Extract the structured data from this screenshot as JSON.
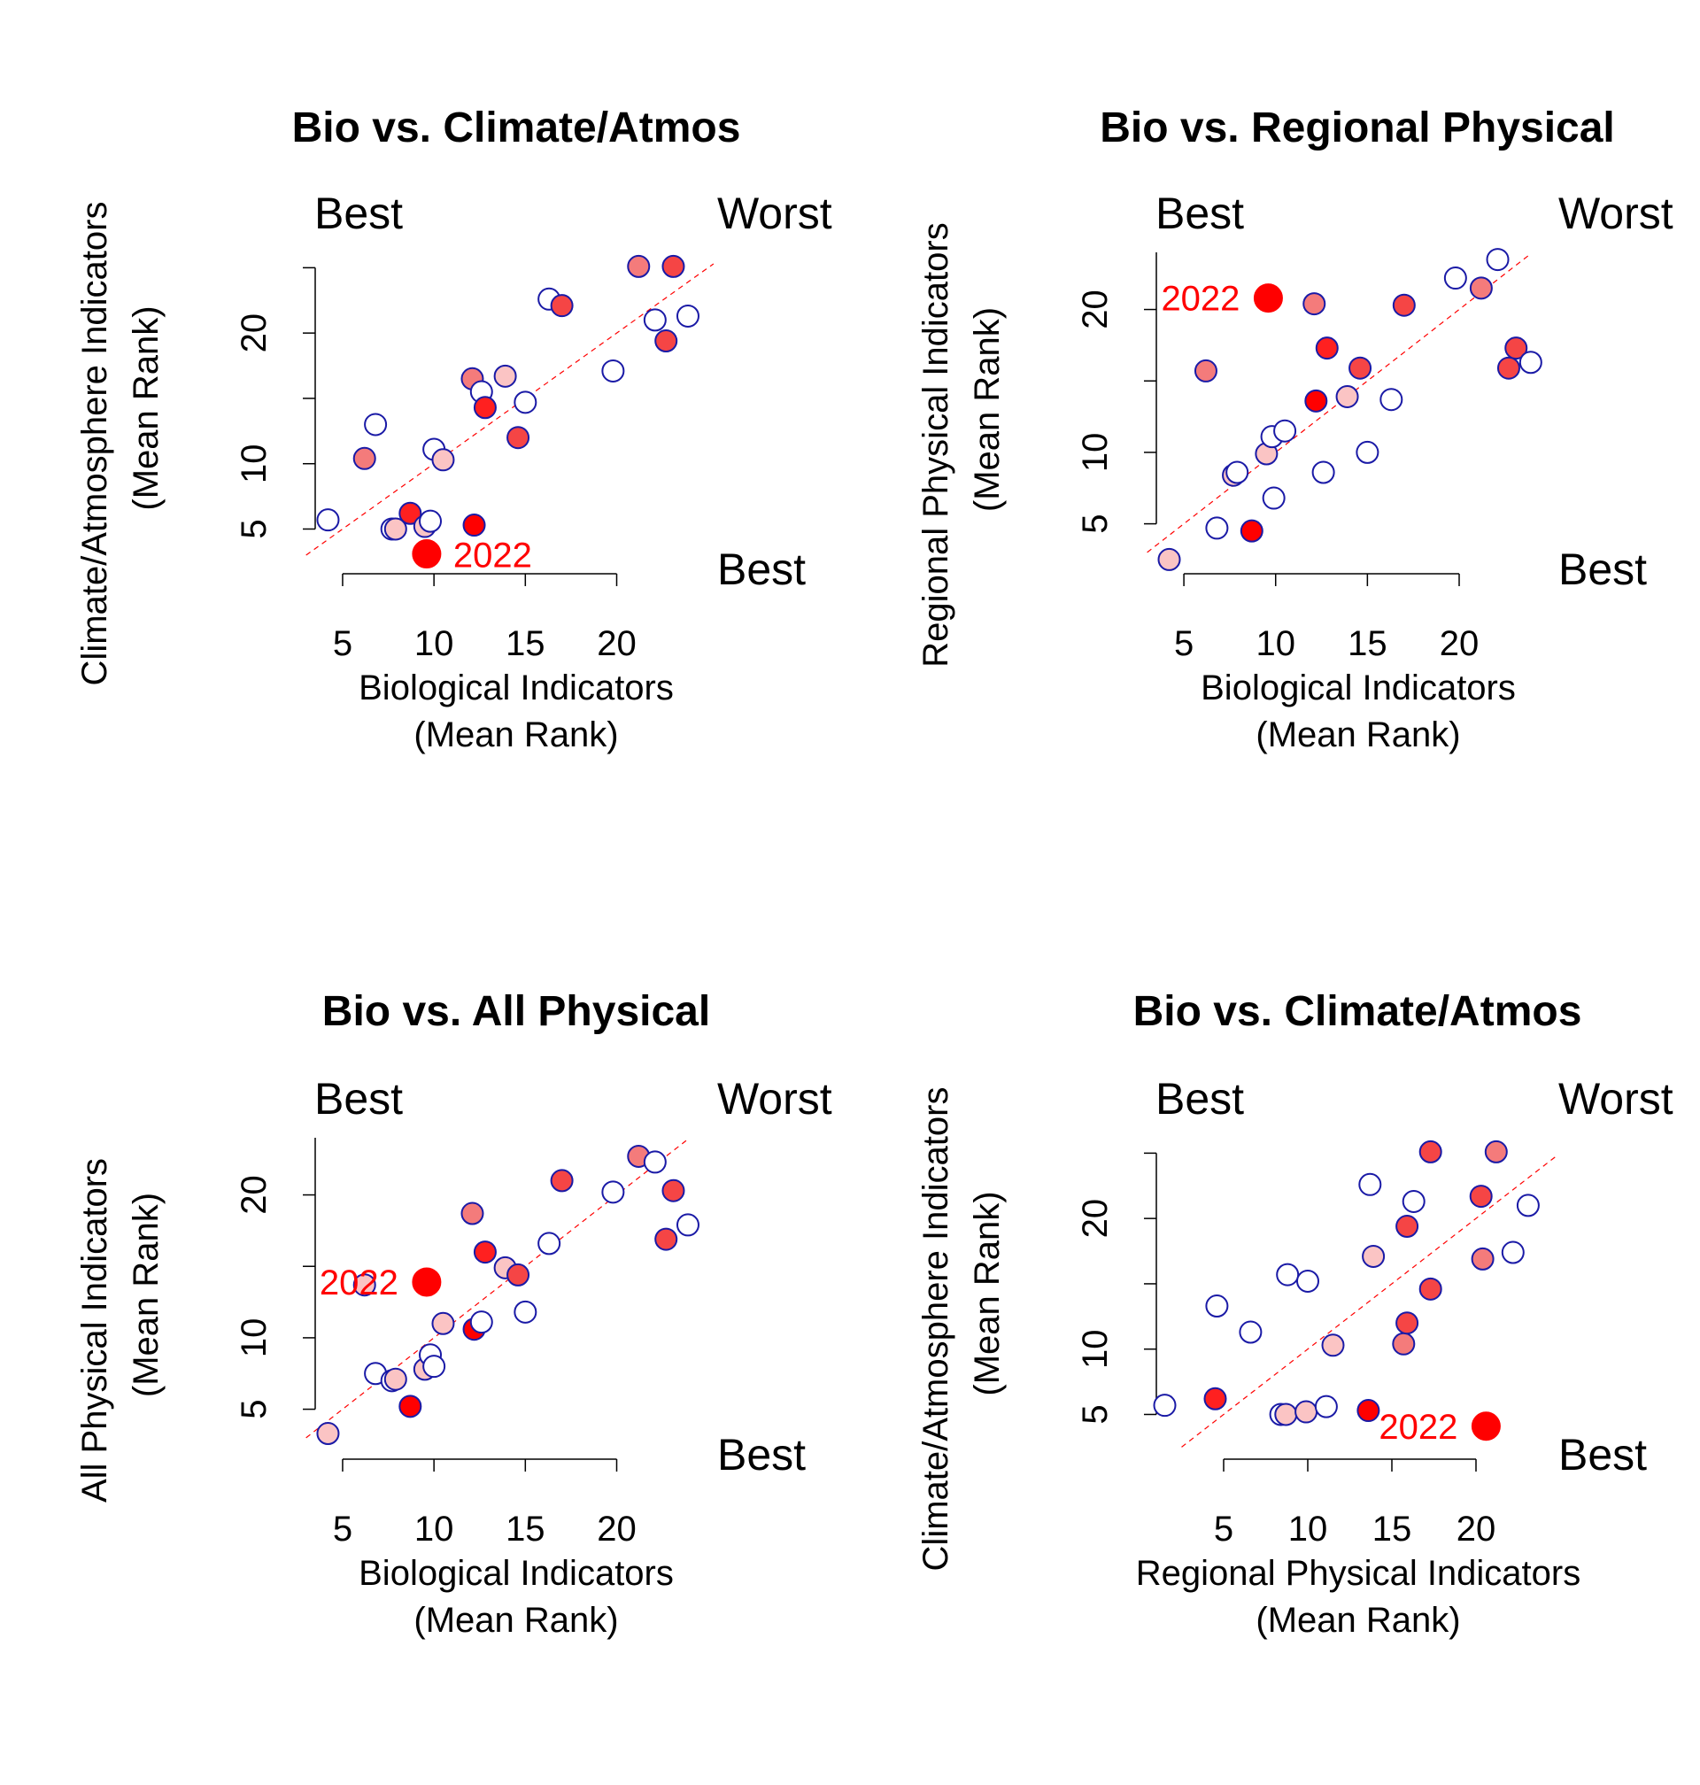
{
  "chart_data": [
    {
      "type": "scatter",
      "title": "Bio vs. Climate/Atmos",
      "xlabel": "Biological Indicators",
      "xlabel2": "(Mean Rank)",
      "ylabel": "Climate/Atmosphere Indicators",
      "ylabel2": "(Mean Rank)",
      "xticks": [
        5,
        10,
        15,
        20
      ],
      "yticks": [
        5,
        10,
        20
      ],
      "xlim": [
        3.5,
        25.5
      ],
      "ylim": [
        3,
        25.5
      ],
      "corner_labels": {
        "top_left": "Best",
        "top_right": "Worst",
        "bottom_right": "Best"
      },
      "highlight": {
        "label": "2022",
        "x": 9.6,
        "y": 3.1
      },
      "points": [
        {
          "x": 4.2,
          "y": 5.7,
          "fill": "#ffffff"
        },
        {
          "x": 6.2,
          "y": 10.4,
          "fill": "#f47b7b"
        },
        {
          "x": 6.8,
          "y": 13.0,
          "fill": "#ffffff"
        },
        {
          "x": 7.7,
          "y": 5.0,
          "fill": "#ffffff"
        },
        {
          "x": 7.9,
          "y": 5.0,
          "fill": "#fbc4c4"
        },
        {
          "x": 8.7,
          "y": 6.2,
          "fill": "#ff2020"
        },
        {
          "x": 9.5,
          "y": 5.2,
          "fill": "#fbc4c4"
        },
        {
          "x": 9.8,
          "y": 5.6,
          "fill": "#ffffff"
        },
        {
          "x": 10.0,
          "y": 11.1,
          "fill": "#ffffff"
        },
        {
          "x": 10.5,
          "y": 10.3,
          "fill": "#fbc4c4"
        },
        {
          "x": 12.2,
          "y": 5.3,
          "fill": "#ff0000"
        },
        {
          "x": 12.1,
          "y": 16.5,
          "fill": "#f47b7b"
        },
        {
          "x": 12.6,
          "y": 15.5,
          "fill": "#ffffff"
        },
        {
          "x": 12.8,
          "y": 14.3,
          "fill": "#ff2020"
        },
        {
          "x": 13.9,
          "y": 16.7,
          "fill": "#fbc4c4"
        },
        {
          "x": 14.6,
          "y": 12.0,
          "fill": "#f54545"
        },
        {
          "x": 15.0,
          "y": 14.7,
          "fill": "#ffffff"
        },
        {
          "x": 16.3,
          "y": 22.6,
          "fill": "#ffffff"
        },
        {
          "x": 17.0,
          "y": 22.1,
          "fill": "#f54545"
        },
        {
          "x": 19.8,
          "y": 17.1,
          "fill": "#ffffff"
        },
        {
          "x": 21.2,
          "y": 25.1,
          "fill": "#f47b7b"
        },
        {
          "x": 22.1,
          "y": 21.0,
          "fill": "#ffffff"
        },
        {
          "x": 22.7,
          "y": 19.4,
          "fill": "#f54545"
        },
        {
          "x": 23.1,
          "y": 25.1,
          "fill": "#f54545"
        },
        {
          "x": 23.9,
          "y": 21.3,
          "fill": "#ffffff"
        }
      ]
    },
    {
      "type": "scatter",
      "title": "Bio vs. Regional Physical",
      "xlabel": "Biological Indicators",
      "xlabel2": "(Mean Rank)",
      "ylabel": "Regional Physical Indicators",
      "ylabel2": "(Mean Rank)",
      "xticks": [
        5,
        10,
        15,
        20
      ],
      "yticks": [
        5,
        10,
        20
      ],
      "xlim": [
        3.5,
        25.5
      ],
      "ylim": [
        2,
        24
      ],
      "corner_labels": {
        "top_left": "Best",
        "top_right": "Worst",
        "bottom_right": "Best"
      },
      "highlight": {
        "label": "2022",
        "x": 9.6,
        "y": 20.8
      },
      "points": [
        {
          "x": 4.2,
          "y": 2.5,
          "fill": "#fbc4c4"
        },
        {
          "x": 6.2,
          "y": 15.7,
          "fill": "#f47b7b"
        },
        {
          "x": 6.8,
          "y": 4.7,
          "fill": "#ffffff"
        },
        {
          "x": 7.7,
          "y": 8.4,
          "fill": "#fbc4c4"
        },
        {
          "x": 7.9,
          "y": 8.6,
          "fill": "#ffffff"
        },
        {
          "x": 8.7,
          "y": 4.5,
          "fill": "#ff0000"
        },
        {
          "x": 9.5,
          "y": 9.9,
          "fill": "#fbc4c4"
        },
        {
          "x": 9.8,
          "y": 11.1,
          "fill": "#ffffff"
        },
        {
          "x": 9.9,
          "y": 6.8,
          "fill": "#ffffff"
        },
        {
          "x": 10.5,
          "y": 11.5,
          "fill": "#ffffff"
        },
        {
          "x": 12.1,
          "y": 20.4,
          "fill": "#f47b7b"
        },
        {
          "x": 12.2,
          "y": 13.6,
          "fill": "#ff0000"
        },
        {
          "x": 12.6,
          "y": 8.6,
          "fill": "#ffffff"
        },
        {
          "x": 12.8,
          "y": 17.3,
          "fill": "#ff2020"
        },
        {
          "x": 13.9,
          "y": 13.9,
          "fill": "#fbc4c4"
        },
        {
          "x": 14.6,
          "y": 15.9,
          "fill": "#f54545"
        },
        {
          "x": 15.0,
          "y": 10.0,
          "fill": "#ffffff"
        },
        {
          "x": 16.3,
          "y": 13.7,
          "fill": "#ffffff"
        },
        {
          "x": 17.0,
          "y": 20.3,
          "fill": "#f54545"
        },
        {
          "x": 19.8,
          "y": 22.2,
          "fill": "#ffffff"
        },
        {
          "x": 21.2,
          "y": 21.5,
          "fill": "#f47b7b"
        },
        {
          "x": 22.1,
          "y": 23.5,
          "fill": "#ffffff"
        },
        {
          "x": 22.7,
          "y": 15.9,
          "fill": "#f54545"
        },
        {
          "x": 23.1,
          "y": 17.3,
          "fill": "#f54545"
        },
        {
          "x": 23.9,
          "y": 16.3,
          "fill": "#ffffff"
        }
      ]
    },
    {
      "type": "scatter",
      "title": "Bio vs. All Physical",
      "xlabel": "Biological Indicators",
      "xlabel2": "(Mean Rank)",
      "ylabel": "All Physical Indicators",
      "ylabel2": "(Mean Rank)",
      "xticks": [
        5,
        10,
        15,
        20
      ],
      "yticks": [
        5,
        10,
        20
      ],
      "xlim": [
        3.5,
        25.5
      ],
      "ylim": [
        2,
        24
      ],
      "corner_labels": {
        "top_left": "Best",
        "top_right": "Worst",
        "bottom_right": "Best"
      },
      "highlight": {
        "label": "2022",
        "x": 9.6,
        "y": 13.9
      },
      "points": [
        {
          "x": 4.2,
          "y": 3.3,
          "fill": "#fbc4c4"
        },
        {
          "x": 6.2,
          "y": 13.7,
          "fill": "#fbc4c4"
        },
        {
          "x": 6.8,
          "y": 7.5,
          "fill": "#ffffff"
        },
        {
          "x": 7.7,
          "y": 7.0,
          "fill": "#ffffff"
        },
        {
          "x": 7.9,
          "y": 7.1,
          "fill": "#fbc4c4"
        },
        {
          "x": 8.7,
          "y": 5.2,
          "fill": "#ff0000"
        },
        {
          "x": 9.5,
          "y": 7.8,
          "fill": "#fbc4c4"
        },
        {
          "x": 9.8,
          "y": 8.8,
          "fill": "#ffffff"
        },
        {
          "x": 10.0,
          "y": 8.0,
          "fill": "#ffffff"
        },
        {
          "x": 10.5,
          "y": 11.0,
          "fill": "#fbc4c4"
        },
        {
          "x": 12.1,
          "y": 18.7,
          "fill": "#f47b7b"
        },
        {
          "x": 12.2,
          "y": 10.6,
          "fill": "#ff0000"
        },
        {
          "x": 12.6,
          "y": 11.1,
          "fill": "#ffffff"
        },
        {
          "x": 12.8,
          "y": 16.0,
          "fill": "#ff2020"
        },
        {
          "x": 13.9,
          "y": 14.9,
          "fill": "#fbc4c4"
        },
        {
          "x": 14.6,
          "y": 14.4,
          "fill": "#f54545"
        },
        {
          "x": 15.0,
          "y": 11.8,
          "fill": "#ffffff"
        },
        {
          "x": 16.3,
          "y": 16.6,
          "fill": "#ffffff"
        },
        {
          "x": 17.0,
          "y": 21.0,
          "fill": "#f54545"
        },
        {
          "x": 19.8,
          "y": 20.2,
          "fill": "#ffffff"
        },
        {
          "x": 21.2,
          "y": 22.7,
          "fill": "#f47b7b"
        },
        {
          "x": 22.1,
          "y": 22.3,
          "fill": "#ffffff"
        },
        {
          "x": 22.7,
          "y": 16.9,
          "fill": "#f54545"
        },
        {
          "x": 23.1,
          "y": 20.3,
          "fill": "#f54545"
        },
        {
          "x": 23.9,
          "y": 17.9,
          "fill": "#ffffff"
        }
      ]
    },
    {
      "type": "scatter",
      "title": "Bio vs. Climate/Atmos",
      "xlabel": "Regional Physical Indicators",
      "xlabel2": "(Mean Rank)",
      "ylabel": "Climate/Atmosphere Indicators",
      "ylabel2": "(Mean Rank)",
      "xticks": [
        5,
        10,
        15,
        20
      ],
      "yticks": [
        5,
        10,
        20
      ],
      "xlim": [
        1,
        25
      ],
      "ylim": [
        3,
        25.5
      ],
      "corner_labels": {
        "top_left": "Best",
        "top_right": "Worst",
        "bottom_right": "Best"
      },
      "highlight": {
        "label": "2022",
        "x": 20.6,
        "y": 4.1
      },
      "points": [
        {
          "x": 1.5,
          "y": 5.7,
          "fill": "#ffffff"
        },
        {
          "x": 4.5,
          "y": 6.2,
          "fill": "#ff2020"
        },
        {
          "x": 4.6,
          "y": 13.3,
          "fill": "#ffffff"
        },
        {
          "x": 6.6,
          "y": 11.3,
          "fill": "#ffffff"
        },
        {
          "x": 8.4,
          "y": 5.0,
          "fill": "#ffffff"
        },
        {
          "x": 8.7,
          "y": 5.0,
          "fill": "#fbc4c4"
        },
        {
          "x": 8.8,
          "y": 15.7,
          "fill": "#ffffff"
        },
        {
          "x": 9.9,
          "y": 5.2,
          "fill": "#fbc4c4"
        },
        {
          "x": 10.0,
          "y": 15.2,
          "fill": "#ffffff"
        },
        {
          "x": 11.1,
          "y": 5.6,
          "fill": "#ffffff"
        },
        {
          "x": 11.5,
          "y": 10.3,
          "fill": "#fbc4c4"
        },
        {
          "x": 13.6,
          "y": 5.3,
          "fill": "#ff0000"
        },
        {
          "x": 13.7,
          "y": 22.6,
          "fill": "#ffffff"
        },
        {
          "x": 13.9,
          "y": 17.1,
          "fill": "#fbc4c4"
        },
        {
          "x": 15.7,
          "y": 10.4,
          "fill": "#f47b7b"
        },
        {
          "x": 15.9,
          "y": 12.0,
          "fill": "#f54545"
        },
        {
          "x": 15.9,
          "y": 19.4,
          "fill": "#f54545"
        },
        {
          "x": 16.3,
          "y": 21.3,
          "fill": "#ffffff"
        },
        {
          "x": 17.3,
          "y": 14.6,
          "fill": "#f54545"
        },
        {
          "x": 17.3,
          "y": 25.1,
          "fill": "#f54545"
        },
        {
          "x": 20.3,
          "y": 21.7,
          "fill": "#f54545"
        },
        {
          "x": 20.4,
          "y": 16.9,
          "fill": "#f47b7b"
        },
        {
          "x": 21.2,
          "y": 25.1,
          "fill": "#f47b7b"
        },
        {
          "x": 22.2,
          "y": 17.4,
          "fill": "#ffffff"
        },
        {
          "x": 23.1,
          "y": 21.0,
          "fill": "#ffffff"
        }
      ]
    }
  ]
}
